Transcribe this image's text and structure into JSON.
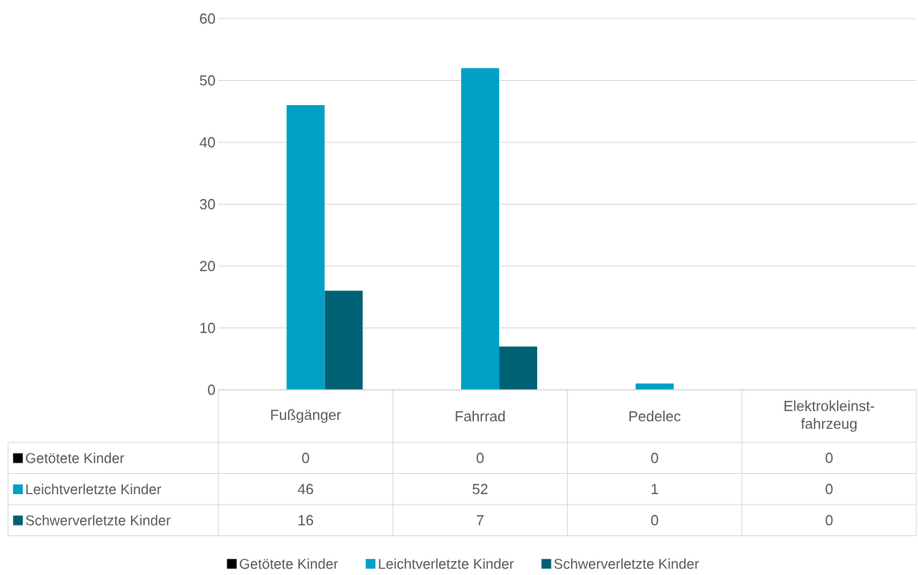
{
  "chart_data": {
    "type": "bar",
    "categories": [
      "Fußgänger",
      "Fahrrad",
      "Pedelec",
      "Elektrokleinst-fahrzeug"
    ],
    "series": [
      {
        "name": "Getötete Kinder",
        "color": "#000000",
        "values": [
          0,
          0,
          0,
          0
        ]
      },
      {
        "name": "Leichtverletzte Kinder",
        "color": "#00a0c6",
        "values": [
          46,
          52,
          1,
          0
        ]
      },
      {
        "name": "Schwerverletzte Kinder",
        "color": "#006174",
        "values": [
          16,
          7,
          0,
          0
        ]
      }
    ],
    "ylim": [
      0,
      60
    ],
    "yticks": [
      0,
      10,
      20,
      30,
      40,
      50,
      60
    ],
    "grid": "y",
    "legend": "bottom",
    "data_labels": true
  }
}
